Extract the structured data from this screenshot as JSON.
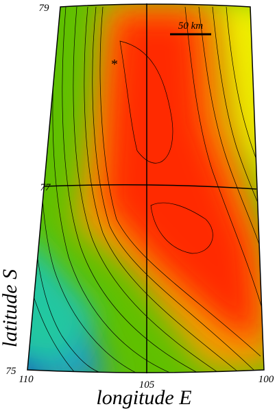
{
  "map": {
    "lat_labels": [
      "79",
      "77",
      "75"
    ],
    "lon_labels": [
      "110",
      "105",
      "100"
    ],
    "y_label": "latitude S",
    "x_label": "longitude E",
    "scale_bar": "50 km",
    "marker": "*"
  }
}
